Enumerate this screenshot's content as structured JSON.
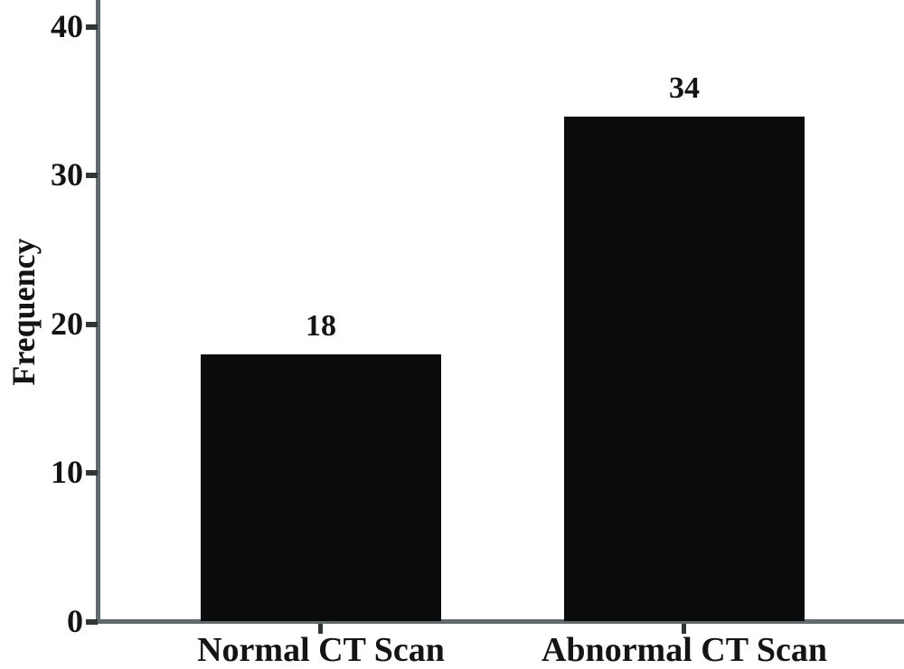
{
  "chart_data": {
    "type": "bar",
    "title": "",
    "xlabel": "",
    "ylabel": "Frequency",
    "categories": [
      "Normal CT Scan",
      "Abnormal CT Scan"
    ],
    "values": [
      18,
      34
    ],
    "value_labels": [
      "18",
      "34"
    ],
    "yticks": [
      0,
      10,
      20,
      30,
      40
    ],
    "ylim": [
      0,
      42
    ],
    "grid": false,
    "legend": false,
    "orientation": "vertical",
    "colors": {
      "bar": "#0b0b0b",
      "axis": "#5d6b6e",
      "tick": "#2e3638",
      "text": "#141414",
      "background": "#ffffff"
    }
  }
}
